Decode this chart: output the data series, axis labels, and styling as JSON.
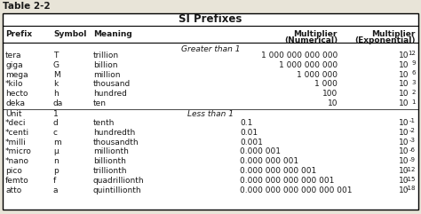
{
  "table_title": "Table 2-2",
  "header_title": "SI Prefixes",
  "col_headers_line1": [
    "Prefix",
    "Symbol",
    "Meaning",
    "Multiplier",
    "Multiplier"
  ],
  "col_headers_line2": [
    "",
    "",
    "",
    "(Numerical)",
    "(Exponential)"
  ],
  "section_greater": "Greater than 1",
  "section_less": "Less than 1",
  "rows_greater": [
    [
      "tera",
      "T",
      "trillion",
      "1 000 000 000 000",
      "12"
    ],
    [
      "giga",
      "G",
      "billion",
      "1 000 000 000",
      "9"
    ],
    [
      "mega",
      "M",
      "million",
      "1 000 000",
      "6"
    ],
    [
      "*kilo",
      "k",
      "thousand",
      "1 000",
      "3"
    ],
    [
      "hecto",
      "h",
      "hundred",
      "100",
      "2"
    ],
    [
      "deka",
      "da",
      "ten",
      "10",
      "1"
    ]
  ],
  "rows_less": [
    [
      "*deci",
      "d",
      "tenth",
      "0.1",
      "-1"
    ],
    [
      "*centi",
      "c",
      "hundredth",
      "0.01",
      "-2"
    ],
    [
      "*milli",
      "m",
      "thousandth",
      "0.001",
      "-3"
    ],
    [
      "*micro",
      "μ",
      "millionth",
      "0.000 001",
      "-6"
    ],
    [
      "*nano",
      "n",
      "billionth",
      "0.000 000 001",
      "-9"
    ],
    [
      "pico",
      "p",
      "trillionth",
      "0.000 000 000 001",
      "-12"
    ],
    [
      "femto",
      "f",
      "quadrillionth",
      "0.000 000 000 000 001",
      "-15"
    ],
    [
      "atto",
      "a",
      "quintillionth",
      "0.000 000 000 000 000 001",
      "-18"
    ]
  ],
  "bg_color": "#e8e4d8",
  "text_color": "#1a1a1a",
  "border_color": "#000000",
  "fontsize": 6.5,
  "title_fontsize": 7.5,
  "header_fontsize": 8.5
}
